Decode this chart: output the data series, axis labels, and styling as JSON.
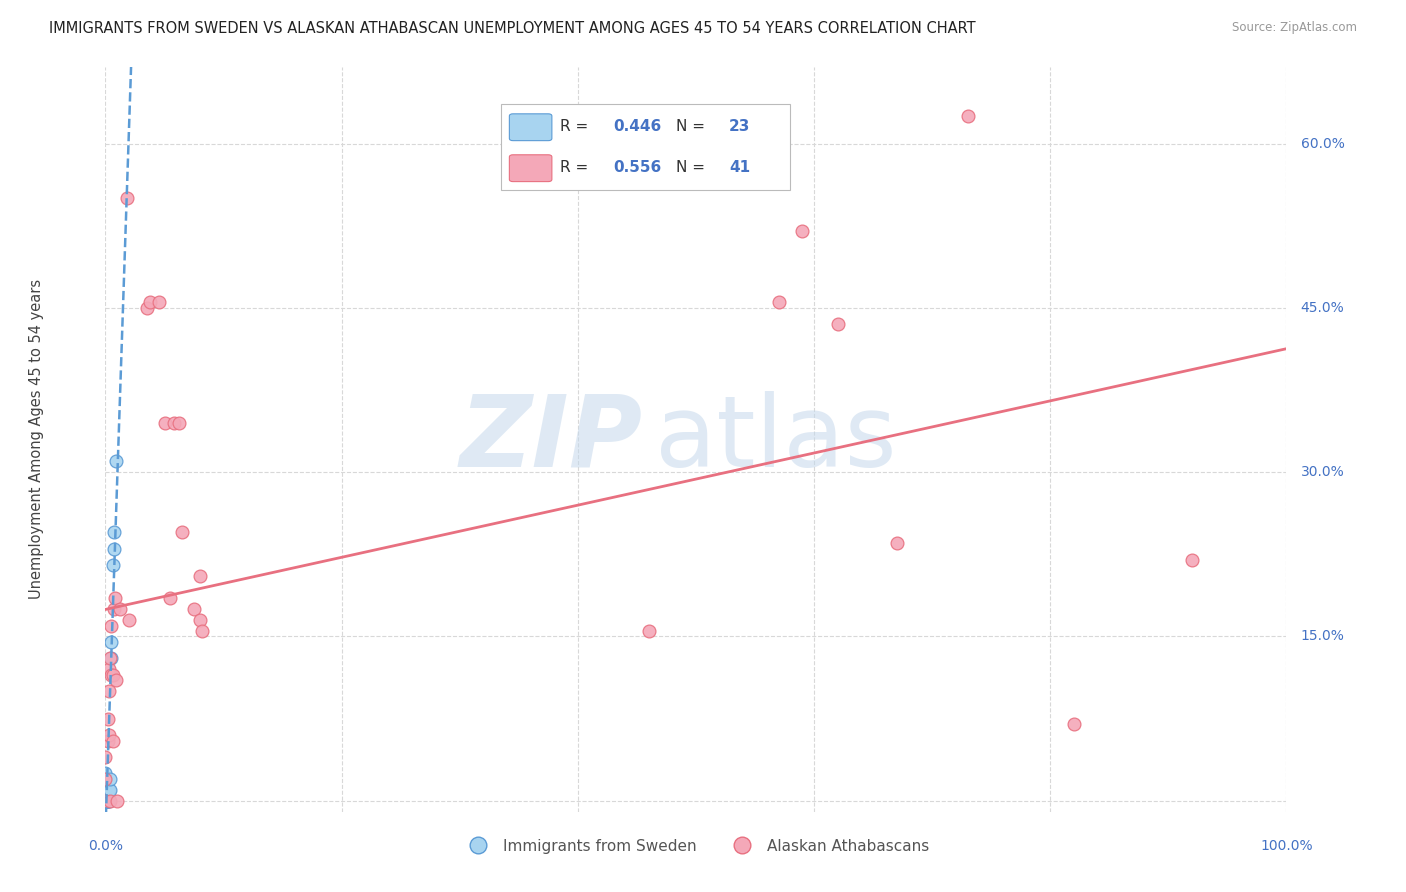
{
  "title": "IMMIGRANTS FROM SWEDEN VS ALASKAN ATHABASCAN UNEMPLOYMENT AMONG AGES 45 TO 54 YEARS CORRELATION CHART",
  "source": "Source: ZipAtlas.com",
  "ylabel": "Unemployment Among Ages 45 to 54 years",
  "xlim": [
    0,
    1.0
  ],
  "ylim": [
    -0.01,
    0.67
  ],
  "xticks": [
    0.0,
    0.2,
    0.4,
    0.6,
    0.8,
    1.0
  ],
  "ytick_vals": [
    0.0,
    0.15,
    0.3,
    0.45,
    0.6
  ],
  "ytick_labels": [
    "",
    "15.0%",
    "30.0%",
    "45.0%",
    "60.0%"
  ],
  "background_color": "#ffffff",
  "sweden_points": [
    [
      0.0,
      0.0
    ],
    [
      0.0,
      0.0
    ],
    [
      0.0,
      0.0
    ],
    [
      0.0,
      0.0
    ],
    [
      0.0,
      0.01
    ],
    [
      0.0,
      0.02
    ],
    [
      0.0,
      0.025
    ],
    [
      0.001,
      0.0
    ],
    [
      0.001,
      0.0
    ],
    [
      0.001,
      0.0
    ],
    [
      0.002,
      0.0
    ],
    [
      0.002,
      0.0
    ],
    [
      0.002,
      0.01
    ],
    [
      0.003,
      0.0
    ],
    [
      0.003,
      0.01
    ],
    [
      0.004,
      0.01
    ],
    [
      0.004,
      0.02
    ],
    [
      0.005,
      0.13
    ],
    [
      0.005,
      0.145
    ],
    [
      0.006,
      0.215
    ],
    [
      0.007,
      0.23
    ],
    [
      0.007,
      0.245
    ],
    [
      0.009,
      0.31
    ]
  ],
  "athabascan_points": [
    [
      0.0,
      0.0
    ],
    [
      0.0,
      0.02
    ],
    [
      0.0,
      0.04
    ],
    [
      0.002,
      0.055
    ],
    [
      0.002,
      0.075
    ],
    [
      0.003,
      0.06
    ],
    [
      0.003,
      0.1
    ],
    [
      0.003,
      0.12
    ],
    [
      0.004,
      0.0
    ],
    [
      0.004,
      0.13
    ],
    [
      0.005,
      0.115
    ],
    [
      0.005,
      0.16
    ],
    [
      0.006,
      0.055
    ],
    [
      0.006,
      0.115
    ],
    [
      0.007,
      0.175
    ],
    [
      0.008,
      0.185
    ],
    [
      0.009,
      0.11
    ],
    [
      0.01,
      0.0
    ],
    [
      0.012,
      0.175
    ],
    [
      0.018,
      0.55
    ],
    [
      0.02,
      0.165
    ],
    [
      0.035,
      0.45
    ],
    [
      0.038,
      0.455
    ],
    [
      0.045,
      0.455
    ],
    [
      0.05,
      0.345
    ],
    [
      0.055,
      0.185
    ],
    [
      0.058,
      0.345
    ],
    [
      0.062,
      0.345
    ],
    [
      0.065,
      0.245
    ],
    [
      0.075,
      0.175
    ],
    [
      0.08,
      0.165
    ],
    [
      0.08,
      0.205
    ],
    [
      0.082,
      0.155
    ],
    [
      0.46,
      0.155
    ],
    [
      0.57,
      0.455
    ],
    [
      0.59,
      0.52
    ],
    [
      0.62,
      0.435
    ],
    [
      0.67,
      0.235
    ],
    [
      0.73,
      0.625
    ],
    [
      0.82,
      0.07
    ],
    [
      0.92,
      0.22
    ]
  ],
  "sweden_line_color": "#5b9bd5",
  "athabascan_line_color": "#e87080",
  "point_color_sweden": "#a8d4f0",
  "point_color_athabascan": "#f4a8b8",
  "point_size": 85,
  "axis_label_color": "#4472c4",
  "grid_color": "#d8d8d8",
  "legend_text_color": "#4472c4",
  "watermark_zip_color": "#c5d8ec",
  "watermark_atlas_color": "#c5d8ec"
}
